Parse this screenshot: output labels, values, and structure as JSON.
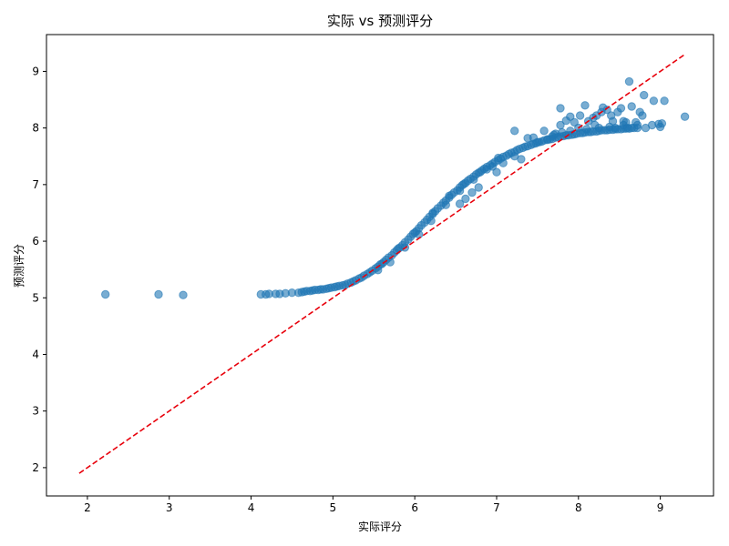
{
  "chart_data": {
    "type": "scatter",
    "title": "实际 vs 预测评分",
    "xlabel": "实际评分",
    "ylabel": "预测评分",
    "xlim": [
      1.5,
      9.65
    ],
    "ylim": [
      1.5,
      9.65
    ],
    "xticks": [
      2,
      3,
      4,
      5,
      6,
      7,
      8,
      9
    ],
    "yticks": [
      2,
      3,
      4,
      5,
      6,
      7,
      8,
      9
    ],
    "grid": false,
    "legend": "none",
    "colors": {
      "points": "#1f77b4",
      "reference_line": "#e8000b",
      "axes": "#000000"
    },
    "reference_line": {
      "style": "dashed",
      "from": [
        1.9,
        1.9
      ],
      "to": [
        9.3,
        9.3
      ]
    },
    "points": [
      [
        2.22,
        5.06
      ],
      [
        2.87,
        5.06
      ],
      [
        3.17,
        5.05
      ],
      [
        4.12,
        5.06
      ],
      [
        4.18,
        5.06
      ],
      [
        4.22,
        5.07
      ],
      [
        4.3,
        5.07
      ],
      [
        4.35,
        5.07
      ],
      [
        4.42,
        5.08
      ],
      [
        4.5,
        5.09
      ],
      [
        4.58,
        5.09
      ],
      [
        4.62,
        5.1
      ],
      [
        4.65,
        5.11
      ],
      [
        4.68,
        5.12
      ],
      [
        4.72,
        5.12
      ],
      [
        4.75,
        5.13
      ],
      [
        4.78,
        5.14
      ],
      [
        4.82,
        5.14
      ],
      [
        4.85,
        5.15
      ],
      [
        4.88,
        5.15
      ],
      [
        4.92,
        5.16
      ],
      [
        4.95,
        5.17
      ],
      [
        4.98,
        5.18
      ],
      [
        5.02,
        5.19
      ],
      [
        5.05,
        5.2
      ],
      [
        5.08,
        5.21
      ],
      [
        5.12,
        5.22
      ],
      [
        5.15,
        5.23
      ],
      [
        5.18,
        5.25
      ],
      [
        5.22,
        5.27
      ],
      [
        5.25,
        5.29
      ],
      [
        5.28,
        5.31
      ],
      [
        5.32,
        5.34
      ],
      [
        5.35,
        5.36
      ],
      [
        5.38,
        5.39
      ],
      [
        5.42,
        5.42
      ],
      [
        5.45,
        5.45
      ],
      [
        5.48,
        5.48
      ],
      [
        5.52,
        5.52
      ],
      [
        5.55,
        5.55
      ],
      [
        5.58,
        5.59
      ],
      [
        5.62,
        5.63
      ],
      [
        5.65,
        5.67
      ],
      [
        5.68,
        5.71
      ],
      [
        5.72,
        5.75
      ],
      [
        5.75,
        5.8
      ],
      [
        5.78,
        5.84
      ],
      [
        5.82,
        5.89
      ],
      [
        5.85,
        5.93
      ],
      [
        5.88,
        5.98
      ],
      [
        5.92,
        6.03
      ],
      [
        5.95,
        6.08
      ],
      [
        5.98,
        6.13
      ],
      [
        6.02,
        6.18
      ],
      [
        6.05,
        6.23
      ],
      [
        6.08,
        6.28
      ],
      [
        6.12,
        6.33
      ],
      [
        6.15,
        6.38
      ],
      [
        6.18,
        6.43
      ],
      [
        6.22,
        6.48
      ],
      [
        6.25,
        6.53
      ],
      [
        6.28,
        6.58
      ],
      [
        6.32,
        6.63
      ],
      [
        6.35,
        6.68
      ],
      [
        6.38,
        6.72
      ],
      [
        6.42,
        6.77
      ],
      [
        6.45,
        6.82
      ],
      [
        6.48,
        6.86
      ],
      [
        6.52,
        6.9
      ],
      [
        6.55,
        6.95
      ],
      [
        6.58,
        6.99
      ],
      [
        6.62,
        7.03
      ],
      [
        6.65,
        7.07
      ],
      [
        6.68,
        7.1
      ],
      [
        6.72,
        7.14
      ],
      [
        6.75,
        7.18
      ],
      [
        6.78,
        7.21
      ],
      [
        6.82,
        7.25
      ],
      [
        6.85,
        7.28
      ],
      [
        6.88,
        7.31
      ],
      [
        6.92,
        7.34
      ],
      [
        6.95,
        7.37
      ],
      [
        6.98,
        7.4
      ],
      [
        7.02,
        7.43
      ],
      [
        7.05,
        7.46
      ],
      [
        7.08,
        7.49
      ],
      [
        7.12,
        7.51
      ],
      [
        7.15,
        7.54
      ],
      [
        7.18,
        7.56
      ],
      [
        7.22,
        7.58
      ],
      [
        7.25,
        7.61
      ],
      [
        7.28,
        7.63
      ],
      [
        7.32,
        7.65
      ],
      [
        7.35,
        7.67
      ],
      [
        7.38,
        7.68
      ],
      [
        7.42,
        7.7
      ],
      [
        7.45,
        7.72
      ],
      [
        7.48,
        7.73
      ],
      [
        7.52,
        7.75
      ],
      [
        7.55,
        7.76
      ],
      [
        7.58,
        7.78
      ],
      [
        7.62,
        7.79
      ],
      [
        7.65,
        7.8
      ],
      [
        7.68,
        7.81
      ],
      [
        7.72,
        7.83
      ],
      [
        7.75,
        7.84
      ],
      [
        7.78,
        7.85
      ],
      [
        7.82,
        7.86
      ],
      [
        7.85,
        7.87
      ],
      [
        7.88,
        7.87
      ],
      [
        7.92,
        7.88
      ],
      [
        7.95,
        7.89
      ],
      [
        7.98,
        7.9
      ],
      [
        8.02,
        7.91
      ],
      [
        8.05,
        7.91
      ],
      [
        8.08,
        7.92
      ],
      [
        8.12,
        7.93
      ],
      [
        8.15,
        7.93
      ],
      [
        8.18,
        7.94
      ],
      [
        8.22,
        7.94
      ],
      [
        8.25,
        7.95
      ],
      [
        8.28,
        7.96
      ],
      [
        8.32,
        7.96
      ],
      [
        8.35,
        7.96
      ],
      [
        8.38,
        7.97
      ],
      [
        8.42,
        7.97
      ],
      [
        8.45,
        7.98
      ],
      [
        8.48,
        7.98
      ],
      [
        8.52,
        7.98
      ],
      [
        8.55,
        7.99
      ],
      [
        8.58,
        7.99
      ],
      [
        8.62,
        7.99
      ],
      [
        8.65,
        8.0
      ],
      [
        8.68,
        8.0
      ],
      [
        8.72,
        8.0
      ],
      [
        5.55,
        5.49
      ],
      [
        5.7,
        5.63
      ],
      [
        5.88,
        5.89
      ],
      [
        6.05,
        6.12
      ],
      [
        6.2,
        6.36
      ],
      [
        6.38,
        6.64
      ],
      [
        6.55,
        6.89
      ],
      [
        6.72,
        7.09
      ],
      [
        6.88,
        7.27
      ],
      [
        5.6,
        5.6
      ],
      [
        5.8,
        5.87
      ],
      [
        6.0,
        6.15
      ],
      [
        6.22,
        6.5
      ],
      [
        6.42,
        6.8
      ],
      [
        6.6,
        7.01
      ],
      [
        6.8,
        7.22
      ],
      [
        6.95,
        7.32
      ],
      [
        6.55,
        6.66
      ],
      [
        6.62,
        6.75
      ],
      [
        6.7,
        6.86
      ],
      [
        6.78,
        6.95
      ],
      [
        7.02,
        7.47
      ],
      [
        7.08,
        7.38
      ],
      [
        7.0,
        7.22
      ],
      [
        7.22,
        7.95
      ],
      [
        7.22,
        7.5
      ],
      [
        7.3,
        7.45
      ],
      [
        7.38,
        7.82
      ],
      [
        7.45,
        7.83
      ],
      [
        7.5,
        7.75
      ],
      [
        7.58,
        7.95
      ],
      [
        7.62,
        7.8
      ],
      [
        7.68,
        7.85
      ],
      [
        7.72,
        7.9
      ],
      [
        7.78,
        8.35
      ],
      [
        7.78,
        8.05
      ],
      [
        7.85,
        8.13
      ],
      [
        7.9,
        8.2
      ],
      [
        7.95,
        8.1
      ],
      [
        8.02,
        8.22
      ],
      [
        8.08,
        8.4
      ],
      [
        8.12,
        8.12
      ],
      [
        8.18,
        8.18
      ],
      [
        8.22,
        8.22
      ],
      [
        8.28,
        8.28
      ],
      [
        8.3,
        8.36
      ],
      [
        8.35,
        8.32
      ],
      [
        8.4,
        8.22
      ],
      [
        8.42,
        8.12
      ],
      [
        8.48,
        8.28
      ],
      [
        8.52,
        8.35
      ],
      [
        8.55,
        8.12
      ],
      [
        8.58,
        8.1
      ],
      [
        8.62,
        8.82
      ],
      [
        8.65,
        8.38
      ],
      [
        8.7,
        8.1
      ],
      [
        8.72,
        8.05
      ],
      [
        8.75,
        8.28
      ],
      [
        8.78,
        8.22
      ],
      [
        8.8,
        8.58
      ],
      [
        8.82,
        8.0
      ],
      [
        8.9,
        8.05
      ],
      [
        8.92,
        8.48
      ],
      [
        8.98,
        8.07
      ],
      [
        9.0,
        8.02
      ],
      [
        9.02,
        8.08
      ],
      [
        9.05,
        8.48
      ],
      [
        9.3,
        8.2
      ],
      [
        8.55,
        8.05
      ],
      [
        8.6,
        8.0
      ],
      [
        8.45,
        8.0
      ],
      [
        8.38,
        8.02
      ],
      [
        8.25,
        8.0
      ],
      [
        8.2,
        8.05
      ],
      [
        8.1,
        7.98
      ],
      [
        8.0,
        8.0
      ],
      [
        7.9,
        7.95
      ],
      [
        7.8,
        7.92
      ],
      [
        7.7,
        7.88
      ]
    ]
  }
}
